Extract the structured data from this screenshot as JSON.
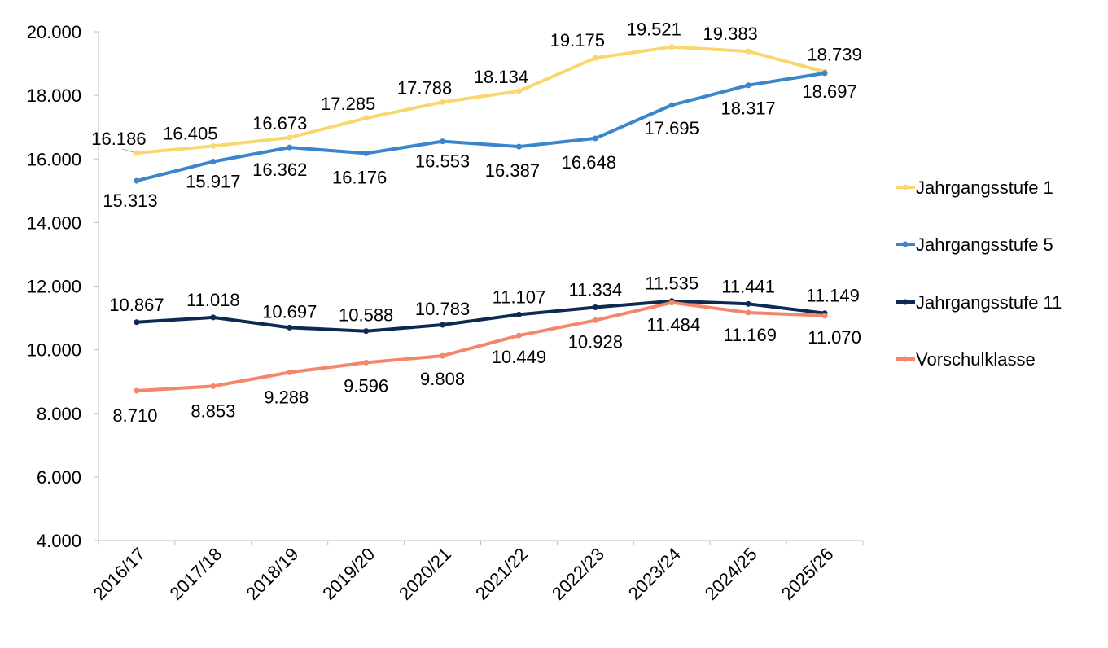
{
  "chart_data": {
    "type": "line",
    "title": "",
    "xlabel": "",
    "ylabel": "",
    "categories": [
      "2016/17",
      "2017/18",
      "2018/19",
      "2019/20",
      "2020/21",
      "2021/22",
      "2022/23",
      "2023/24",
      "2024/25",
      "2025/26"
    ],
    "ylim": [
      4000,
      20000
    ],
    "yticks": [
      4000,
      6000,
      8000,
      10000,
      12000,
      14000,
      16000,
      18000,
      20000
    ],
    "ytick_labels": [
      "4.000",
      "6.000",
      "8.000",
      "10.000",
      "12.000",
      "14.000",
      "16.000",
      "18.000",
      "20.000"
    ],
    "grid": false,
    "legend_position": "right",
    "series": [
      {
        "name": "Jahrgangsstufe 1",
        "color": "#FAD76E",
        "values": [
          16186,
          16405,
          16673,
          17285,
          17788,
          18134,
          19175,
          19521,
          19383,
          18739
        ],
        "labels": [
          "16.186",
          "16.405",
          "16.673",
          "17.285",
          "17.788",
          "18.134",
          "19.175",
          "19.521",
          "19.383",
          "18.739"
        ]
      },
      {
        "name": "Jahrgangsstufe 5",
        "color": "#3A85CC",
        "values": [
          15313,
          15917,
          16362,
          16176,
          16553,
          16387,
          16648,
          17695,
          18317,
          18697
        ],
        "labels": [
          "15.313",
          "15.917",
          "16.362",
          "16.176",
          "16.553",
          "16.387",
          "16.648",
          "17.695",
          "18.317",
          "18.697"
        ]
      },
      {
        "name": "Jahrgangsstufe 11",
        "color": "#0D2B52",
        "values": [
          10867,
          11018,
          10697,
          10588,
          10783,
          11107,
          11334,
          11535,
          11441,
          11149
        ],
        "labels": [
          "10.867",
          "11.018",
          "10.697",
          "10.588",
          "10.783",
          "11.107",
          "11.334",
          "11.535",
          "11.441",
          "11.149"
        ]
      },
      {
        "name": "Vorschulklasse",
        "color": "#F4866C",
        "values": [
          8710,
          8853,
          9288,
          9596,
          9808,
          10449,
          10928,
          11484,
          11169,
          11070
        ],
        "labels": [
          "8.710",
          "8.853",
          "9.288",
          "9.596",
          "9.808",
          "10.449",
          "10.928",
          "11.484",
          "11.169",
          "11.070"
        ]
      }
    ]
  }
}
